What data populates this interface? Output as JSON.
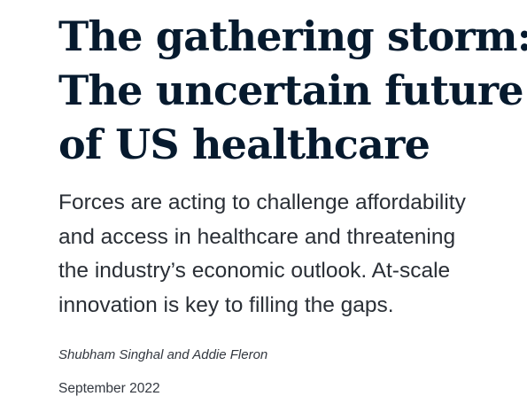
{
  "article": {
    "title_lines": [
      "The gathering storm:",
      "The uncertain future",
      "of US healthcare"
    ],
    "dek_lines": [
      "Forces are acting to challenge affordability",
      "and access in healthcare and threatening",
      "the industry’s economic outlook. At-scale",
      "innovation is key to filling the gaps."
    ],
    "authors": "Shubham Singhal and Addie Fleron",
    "date": "September 2022"
  }
}
